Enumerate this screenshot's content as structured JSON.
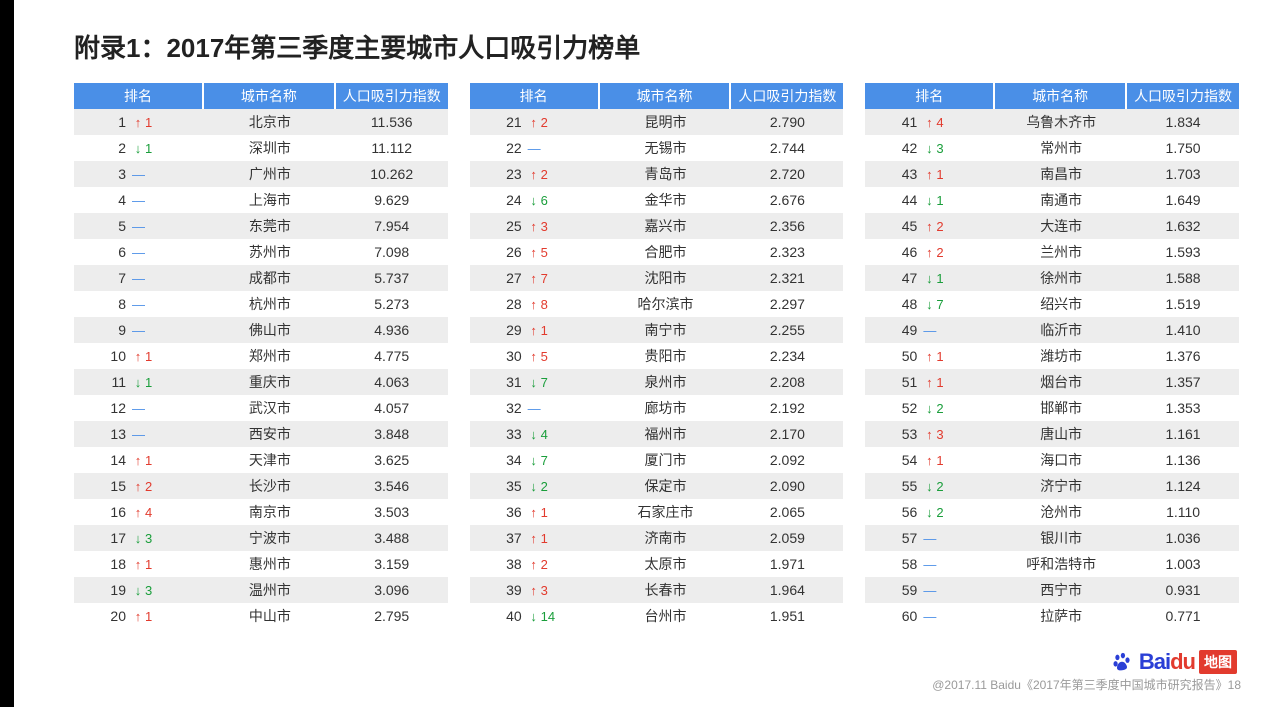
{
  "title": "附录1：2017年第三季度主要城市人口吸引力榜单",
  "columns": {
    "rank": "排名",
    "city": "城市名称",
    "index": "人口吸引力指数"
  },
  "colors": {
    "header_bg": "#4a8fe7",
    "header_fg": "#ffffff",
    "row_odd": "#ededed",
    "row_even": "#ffffff",
    "up": "#e23b2e",
    "down": "#1a9e3b",
    "same": "#4a8fe7",
    "text": "#333333"
  },
  "symbols": {
    "up": "↑",
    "down": "↓",
    "same": "—"
  },
  "tables": [
    [
      {
        "rank": 1,
        "change": "up",
        "delta": 1,
        "city": "北京市",
        "index": "11.536"
      },
      {
        "rank": 2,
        "change": "down",
        "delta": 1,
        "city": "深圳市",
        "index": "11.112"
      },
      {
        "rank": 3,
        "change": "same",
        "delta": null,
        "city": "广州市",
        "index": "10.262"
      },
      {
        "rank": 4,
        "change": "same",
        "delta": null,
        "city": "上海市",
        "index": "9.629"
      },
      {
        "rank": 5,
        "change": "same",
        "delta": null,
        "city": "东莞市",
        "index": "7.954"
      },
      {
        "rank": 6,
        "change": "same",
        "delta": null,
        "city": "苏州市",
        "index": "7.098"
      },
      {
        "rank": 7,
        "change": "same",
        "delta": null,
        "city": "成都市",
        "index": "5.737"
      },
      {
        "rank": 8,
        "change": "same",
        "delta": null,
        "city": "杭州市",
        "index": "5.273"
      },
      {
        "rank": 9,
        "change": "same",
        "delta": null,
        "city": "佛山市",
        "index": "4.936"
      },
      {
        "rank": 10,
        "change": "up",
        "delta": 1,
        "city": "郑州市",
        "index": "4.775"
      },
      {
        "rank": 11,
        "change": "down",
        "delta": 1,
        "city": "重庆市",
        "index": "4.063"
      },
      {
        "rank": 12,
        "change": "same",
        "delta": null,
        "city": "武汉市",
        "index": "4.057"
      },
      {
        "rank": 13,
        "change": "same",
        "delta": null,
        "city": "西安市",
        "index": "3.848"
      },
      {
        "rank": 14,
        "change": "up",
        "delta": 1,
        "city": "天津市",
        "index": "3.625"
      },
      {
        "rank": 15,
        "change": "up",
        "delta": 2,
        "city": "长沙市",
        "index": "3.546"
      },
      {
        "rank": 16,
        "change": "up",
        "delta": 4,
        "city": "南京市",
        "index": "3.503"
      },
      {
        "rank": 17,
        "change": "down",
        "delta": 3,
        "city": "宁波市",
        "index": "3.488"
      },
      {
        "rank": 18,
        "change": "up",
        "delta": 1,
        "city": "惠州市",
        "index": "3.159"
      },
      {
        "rank": 19,
        "change": "down",
        "delta": 3,
        "city": "温州市",
        "index": "3.096"
      },
      {
        "rank": 20,
        "change": "up",
        "delta": 1,
        "city": "中山市",
        "index": "2.795"
      }
    ],
    [
      {
        "rank": 21,
        "change": "up",
        "delta": 2,
        "city": "昆明市",
        "index": "2.790"
      },
      {
        "rank": 22,
        "change": "same",
        "delta": null,
        "city": "无锡市",
        "index": "2.744"
      },
      {
        "rank": 23,
        "change": "up",
        "delta": 2,
        "city": "青岛市",
        "index": "2.720"
      },
      {
        "rank": 24,
        "change": "down",
        "delta": 6,
        "city": "金华市",
        "index": "2.676"
      },
      {
        "rank": 25,
        "change": "up",
        "delta": 3,
        "city": "嘉兴市",
        "index": "2.356"
      },
      {
        "rank": 26,
        "change": "up",
        "delta": 5,
        "city": "合肥市",
        "index": "2.323"
      },
      {
        "rank": 27,
        "change": "up",
        "delta": 7,
        "city": "沈阳市",
        "index": "2.321"
      },
      {
        "rank": 28,
        "change": "up",
        "delta": 8,
        "city": "哈尔滨市",
        "index": "2.297"
      },
      {
        "rank": 29,
        "change": "up",
        "delta": 1,
        "city": "南宁市",
        "index": "2.255"
      },
      {
        "rank": 30,
        "change": "up",
        "delta": 5,
        "city": "贵阳市",
        "index": "2.234"
      },
      {
        "rank": 31,
        "change": "down",
        "delta": 7,
        "city": "泉州市",
        "index": "2.208"
      },
      {
        "rank": 32,
        "change": "same",
        "delta": null,
        "city": "廊坊市",
        "index": "2.192"
      },
      {
        "rank": 33,
        "change": "down",
        "delta": 4,
        "city": "福州市",
        "index": "2.170"
      },
      {
        "rank": 34,
        "change": "down",
        "delta": 7,
        "city": "厦门市",
        "index": "2.092"
      },
      {
        "rank": 35,
        "change": "down",
        "delta": 2,
        "city": "保定市",
        "index": "2.090"
      },
      {
        "rank": 36,
        "change": "up",
        "delta": 1,
        "city": "石家庄市",
        "index": "2.065"
      },
      {
        "rank": 37,
        "change": "up",
        "delta": 1,
        "city": "济南市",
        "index": "2.059"
      },
      {
        "rank": 38,
        "change": "up",
        "delta": 2,
        "city": "太原市",
        "index": "1.971"
      },
      {
        "rank": 39,
        "change": "up",
        "delta": 3,
        "city": "长春市",
        "index": "1.964"
      },
      {
        "rank": 40,
        "change": "down",
        "delta": 14,
        "city": "台州市",
        "index": "1.951"
      }
    ],
    [
      {
        "rank": 41,
        "change": "up",
        "delta": 4,
        "city": "乌鲁木齐市",
        "index": "1.834"
      },
      {
        "rank": 42,
        "change": "down",
        "delta": 3,
        "city": "常州市",
        "index": "1.750"
      },
      {
        "rank": 43,
        "change": "up",
        "delta": 1,
        "city": "南昌市",
        "index": "1.703"
      },
      {
        "rank": 44,
        "change": "down",
        "delta": 1,
        "city": "南通市",
        "index": "1.649"
      },
      {
        "rank": 45,
        "change": "up",
        "delta": 2,
        "city": "大连市",
        "index": "1.632"
      },
      {
        "rank": 46,
        "change": "up",
        "delta": 2,
        "city": "兰州市",
        "index": "1.593"
      },
      {
        "rank": 47,
        "change": "down",
        "delta": 1,
        "city": "徐州市",
        "index": "1.588"
      },
      {
        "rank": 48,
        "change": "down",
        "delta": 7,
        "city": "绍兴市",
        "index": "1.519"
      },
      {
        "rank": 49,
        "change": "same",
        "delta": null,
        "city": "临沂市",
        "index": "1.410"
      },
      {
        "rank": 50,
        "change": "up",
        "delta": 1,
        "city": "潍坊市",
        "index": "1.376"
      },
      {
        "rank": 51,
        "change": "up",
        "delta": 1,
        "city": "烟台市",
        "index": "1.357"
      },
      {
        "rank": 52,
        "change": "down",
        "delta": 2,
        "city": "邯郸市",
        "index": "1.353"
      },
      {
        "rank": 53,
        "change": "up",
        "delta": 3,
        "city": "唐山市",
        "index": "1.161"
      },
      {
        "rank": 54,
        "change": "up",
        "delta": 1,
        "city": "海口市",
        "index": "1.136"
      },
      {
        "rank": 55,
        "change": "down",
        "delta": 2,
        "city": "济宁市",
        "index": "1.124"
      },
      {
        "rank": 56,
        "change": "down",
        "delta": 2,
        "city": "沧州市",
        "index": "1.110"
      },
      {
        "rank": 57,
        "change": "same",
        "delta": null,
        "city": "银川市",
        "index": "1.036"
      },
      {
        "rank": 58,
        "change": "same",
        "delta": null,
        "city": "呼和浩特市",
        "index": "1.003"
      },
      {
        "rank": 59,
        "change": "same",
        "delta": null,
        "city": "西宁市",
        "index": "0.931"
      },
      {
        "rank": 60,
        "change": "same",
        "delta": null,
        "city": "拉萨市",
        "index": "0.771"
      }
    ]
  ],
  "footer": "@2017.11 Baidu《2017年第三季度中国城市研究报告》18",
  "logo": {
    "text1a": "Bai",
    "text1b": "du",
    "text2": "地图"
  }
}
